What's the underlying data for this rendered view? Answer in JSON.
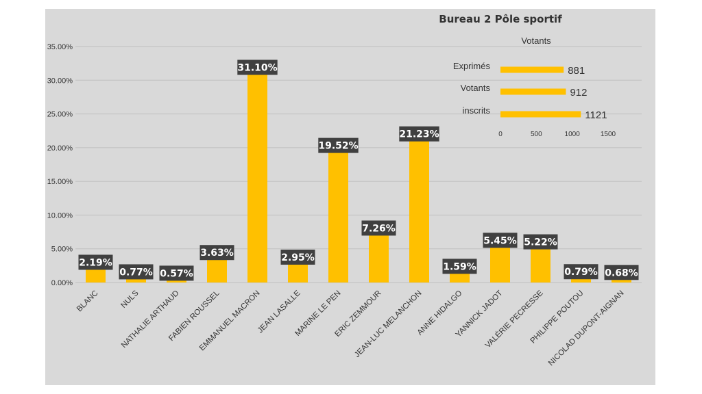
{
  "colors": {
    "page_background": "#ffffff",
    "chart_background": "#d9d9d9",
    "bar": "#ffc000",
    "label_box": "#404040",
    "label_text": "#ffffff",
    "gridline": "#bfbfbf",
    "text": "#333333"
  },
  "chart_data": [
    {
      "type": "bar",
      "title": "",
      "xlabel": "",
      "ylabel": "",
      "ylim": [
        0,
        0.35
      ],
      "y_tick_values": [
        0,
        0.05,
        0.1,
        0.15,
        0.2,
        0.25,
        0.3,
        0.35
      ],
      "y_tick_labels": [
        "0.00%",
        "5.00%",
        "10.00%",
        "15.00%",
        "20.00%",
        "25.00%",
        "30.00%",
        "35.00%"
      ],
      "grid": true,
      "categories": [
        "BLANC",
        "NULS",
        "NATHALIE ARTHAUD",
        "FABIEN ROUSSEL",
        "EMMANUEL MACRON",
        "JEAN LASALLE",
        "MARINE LE PEN",
        "ERIC ZEMMOUR",
        "JEAN-LUC MELANCHON",
        "ANNE HIDALGO",
        "YANNICK JADOT",
        "VALÉRIE PECRESSE",
        "PHILIPPE POUTOU",
        "NICOLAD DUPONT-AIGNAN"
      ],
      "values": [
        0.0219,
        0.0077,
        0.0057,
        0.0363,
        0.311,
        0.0295,
        0.1952,
        0.0726,
        0.2123,
        0.0159,
        0.0545,
        0.0522,
        0.0079,
        0.0068
      ],
      "value_labels": [
        "2.19%",
        "0.77%",
        "0.57%",
        "3.63%",
        "31.10%",
        "2.95%",
        "19.52%",
        "7.26%",
        "21.23%",
        "1.59%",
        "5.45%",
        "5.22%",
        "0.79%",
        "0.68%"
      ]
    },
    {
      "type": "bar",
      "orientation": "horizontal",
      "title": "Votants",
      "categories": [
        "Exprimés",
        "Votants",
        "inscrits"
      ],
      "values": [
        881,
        912,
        1121
      ],
      "value_labels": [
        "881",
        "912",
        "1121"
      ],
      "xlim": [
        0,
        1500
      ],
      "x_tick_values": [
        0,
        500,
        1000,
        1500
      ],
      "x_tick_labels": [
        "0",
        "500",
        "1000",
        "1500"
      ],
      "grid": false
    }
  ],
  "header": {
    "title": "Bureau 2 Pôle sportif"
  }
}
